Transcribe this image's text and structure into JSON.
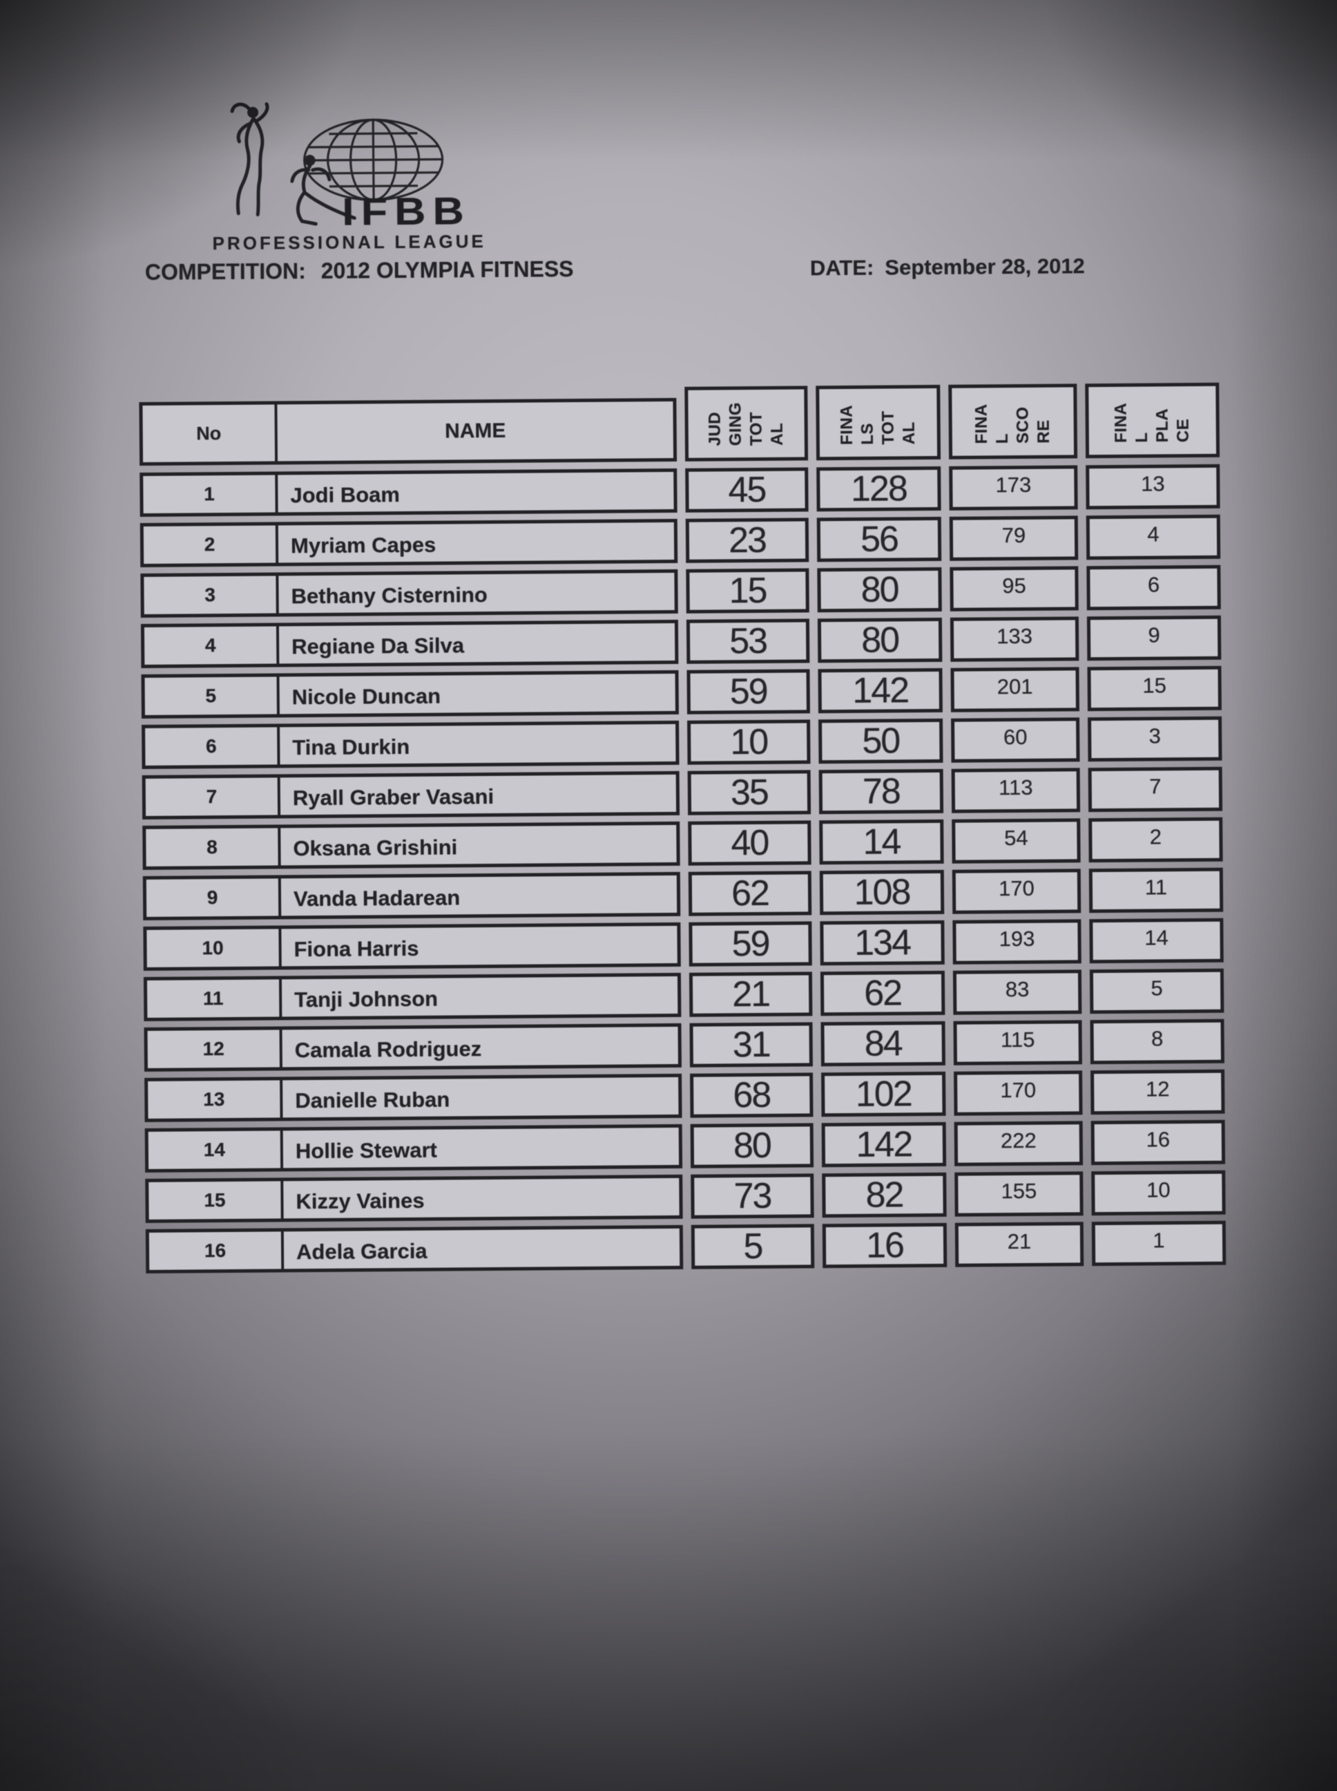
{
  "header": {
    "logo_icon": "ifbb-athletes-globe-logo",
    "brand": "IFBB",
    "brand_sub": "PROFESSIONAL LEAGUE",
    "competition_label": "COMPETITION:",
    "competition_value": "2012 OLYMPIA FITNESS",
    "date_label": "DATE:",
    "date_value": "September 28, 2012"
  },
  "table": {
    "headers": {
      "no": "No",
      "name": "NAME",
      "judging_total": "JUDGING TOTAL",
      "finals_total": "FINALS TOTAL",
      "final_score": "FINAL SCORE",
      "final_place": "FINAL PLACE"
    },
    "rows": [
      {
        "no": "1",
        "name": "Jodi Boam",
        "judging": "45",
        "finals": "128",
        "score": "173",
        "place": "13"
      },
      {
        "no": "2",
        "name": "Myriam Capes",
        "judging": "23",
        "finals": "56",
        "score": "79",
        "place": "4"
      },
      {
        "no": "3",
        "name": "Bethany Cisternino",
        "judging": "15",
        "finals": "80",
        "score": "95",
        "place": "6"
      },
      {
        "no": "4",
        "name": "Regiane Da Silva",
        "judging": "53",
        "finals": "80",
        "score": "133",
        "place": "9"
      },
      {
        "no": "5",
        "name": "Nicole Duncan",
        "judging": "59",
        "finals": "142",
        "score": "201",
        "place": "15"
      },
      {
        "no": "6",
        "name": "Tina Durkin",
        "judging": "10",
        "finals": "50",
        "score": "60",
        "place": "3"
      },
      {
        "no": "7",
        "name": "Ryall Graber Vasani",
        "judging": "35",
        "finals": "78",
        "score": "113",
        "place": "7"
      },
      {
        "no": "8",
        "name": "Oksana Grishini",
        "judging": "40",
        "finals": "14",
        "score": "54",
        "place": "2"
      },
      {
        "no": "9",
        "name": "Vanda Hadarean",
        "judging": "62",
        "finals": "108",
        "score": "170",
        "place": "11"
      },
      {
        "no": "10",
        "name": "Fiona Harris",
        "judging": "59",
        "finals": "134",
        "score": "193",
        "place": "14"
      },
      {
        "no": "11",
        "name": "Tanji Johnson",
        "judging": "21",
        "finals": "62",
        "score": "83",
        "place": "5"
      },
      {
        "no": "12",
        "name": "Camala Rodriguez",
        "judging": "31",
        "finals": "84",
        "score": "115",
        "place": "8"
      },
      {
        "no": "13",
        "name": "Danielle Ruban",
        "judging": "68",
        "finals": "102",
        "score": "170",
        "place": "12"
      },
      {
        "no": "14",
        "name": "Hollie Stewart",
        "judging": "80",
        "finals": "142",
        "score": "222",
        "place": "16"
      },
      {
        "no": "15",
        "name": "Kizzy Vaines",
        "judging": "73",
        "finals": "82",
        "score": "155",
        "place": "10"
      },
      {
        "no": "16",
        "name": "Adela Garcia",
        "judging": "5",
        "finals": "16",
        "score": "21",
        "place": "1"
      }
    ]
  }
}
